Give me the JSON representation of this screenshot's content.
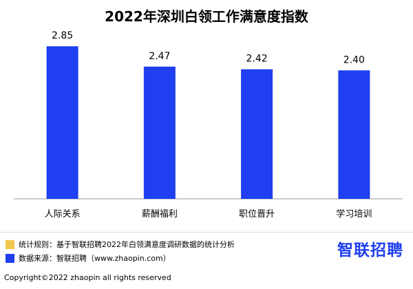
{
  "chart_data": {
    "type": "bar",
    "title": "2022年深圳白领工作满意度指数",
    "categories": [
      "人际关系",
      "薪酬福利",
      "职位晋升",
      "学习培训"
    ],
    "values": [
      2.85,
      2.47,
      2.42,
      2.4
    ],
    "value_labels": [
      "2.85",
      "2.47",
      "2.42",
      "2.40"
    ],
    "bar_color": "#1f3ff0",
    "ylim": [
      0,
      3.2
    ],
    "grid": false,
    "xlabel": "",
    "ylabel": ""
  },
  "notes": [
    {
      "text": "统计规则：基于智联招聘2022年白领满意度调研数据的统计分析",
      "color": "#f3c74d"
    },
    {
      "text": "数据来源：智联招聘（www.zhaopin.com）",
      "color": "#1f3ff0"
    }
  ],
  "brand": {
    "text": "智联招聘",
    "color": "#1f3ff0"
  },
  "copyright": "Copyright©2022 zhaopin all rights reserved"
}
